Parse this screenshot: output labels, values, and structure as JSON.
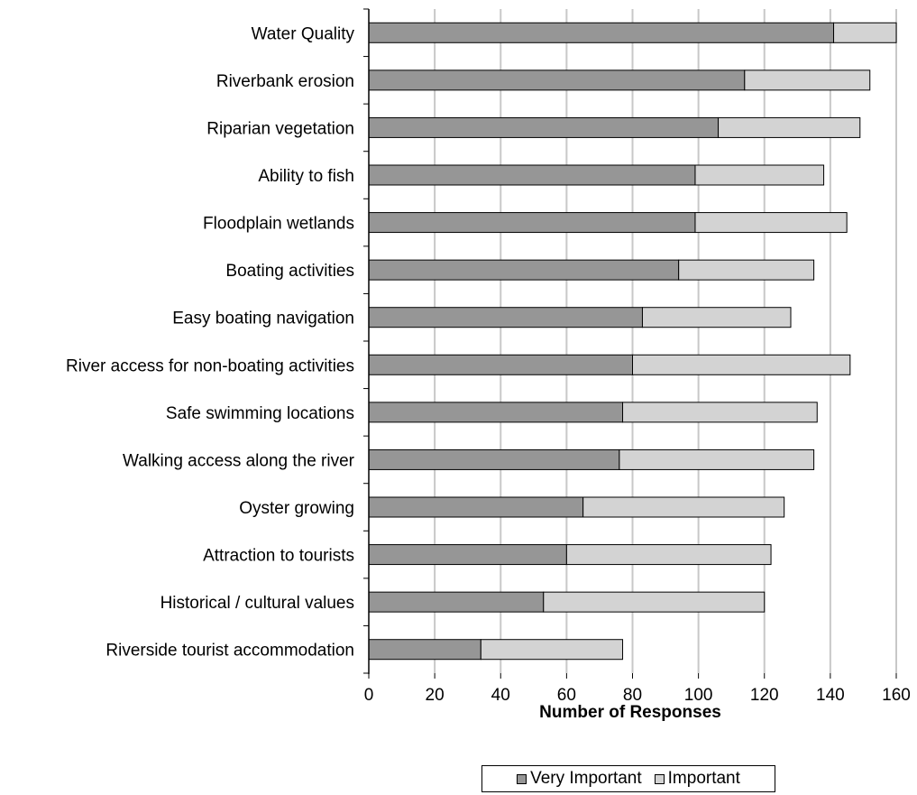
{
  "chart_data": {
    "type": "bar",
    "orientation": "horizontal",
    "stacked": true,
    "categories": [
      "Water Quality",
      "Riverbank erosion",
      "Riparian vegetation",
      "Ability to fish",
      "Floodplain wetlands",
      "Boating activities",
      "Easy boating navigation",
      "River access for non-boating activities",
      "Safe swimming locations",
      "Walking access along the river",
      "Oyster growing",
      "Attraction to tourists",
      "Historical / cultural values",
      "Riverside tourist accommodation"
    ],
    "series": [
      {
        "name": "Very Important",
        "color": "#969696",
        "values": [
          141,
          114,
          106,
          99,
          99,
          94,
          83,
          80,
          77,
          76,
          65,
          60,
          53,
          34
        ]
      },
      {
        "name": "Important",
        "color": "#d3d3d3",
        "values": [
          19,
          38,
          43,
          39,
          46,
          41,
          45,
          66,
          59,
          59,
          61,
          62,
          67,
          43
        ]
      }
    ],
    "title": "",
    "xlabel": "Number of Responses",
    "ylabel": "",
    "xlim": [
      0,
      160
    ],
    "xticks": [
      0,
      20,
      40,
      60,
      80,
      100,
      120,
      140,
      160
    ],
    "grid": true,
    "legend": "bottom"
  }
}
